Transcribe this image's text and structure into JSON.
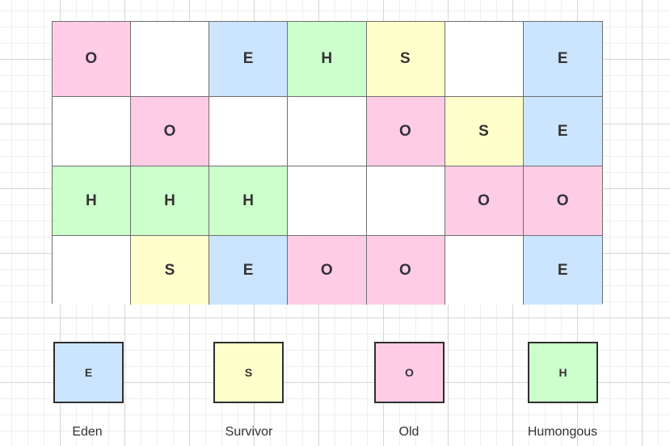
{
  "colors": {
    "E": "#cce5ff",
    "S": "#ffffcc",
    "O": "#ffcce6",
    "H": "#ccffcc",
    "empty": "#ffffff"
  },
  "region_grid": [
    [
      "O",
      "",
      "E",
      "H",
      "S",
      "",
      "E"
    ],
    [
      "",
      "O",
      "",
      "",
      "O",
      "S",
      "E"
    ],
    [
      "H",
      "H",
      "H",
      "",
      "",
      "O",
      "O"
    ],
    [
      "",
      "S",
      "E",
      "O",
      "O",
      "",
      "E"
    ]
  ],
  "legend": [
    {
      "code": "E",
      "label": "Eden"
    },
    {
      "code": "S",
      "label": "Survivor"
    },
    {
      "code": "O",
      "label": "Old"
    },
    {
      "code": "H",
      "label": "Humongous"
    }
  ]
}
